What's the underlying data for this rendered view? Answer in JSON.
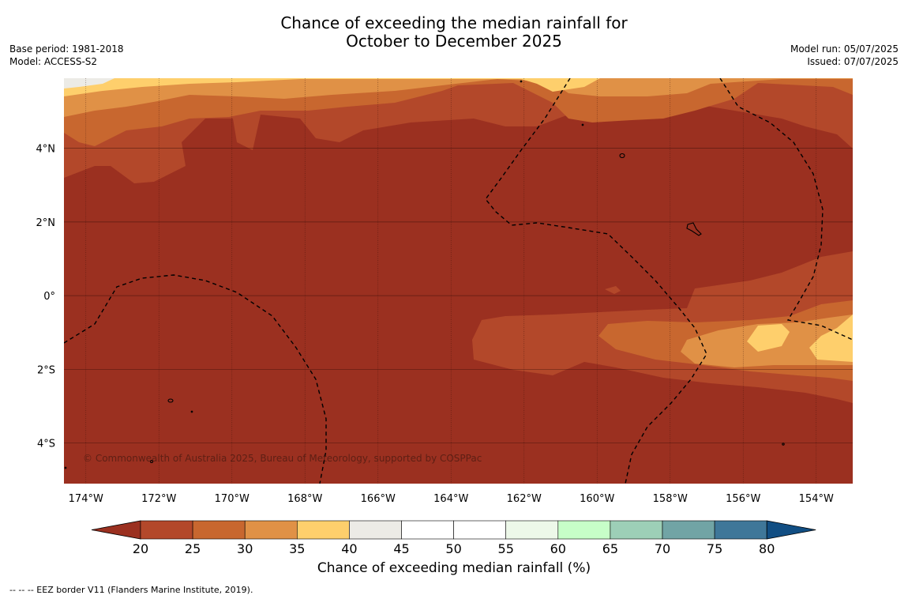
{
  "title": {
    "line1": "Chance of exceeding the median rainfall for",
    "line2": "October to December 2025"
  },
  "meta_left": {
    "base_period": "Base period: 1981-2018",
    "model": "Model: ACCESS-S2"
  },
  "meta_right": {
    "model_run": "Model run: 05/07/2025",
    "issued": "Issued: 07/07/2025"
  },
  "map": {
    "copyright": "© Commonwealth of Australia 2025, Bureau of Meteorology, supported by COSPPac",
    "lon_labels": [
      "174°W",
      "172°W",
      "170°W",
      "168°W",
      "166°W",
      "164°W",
      "162°W",
      "160°W",
      "158°W",
      "156°W",
      "154°W"
    ],
    "lat_labels": [
      "4°N",
      "2°N",
      "0°",
      "2°S",
      "4°S"
    ],
    "extent": {
      "lon": [
        -174.6,
        -153.0
      ],
      "lat": [
        -5.1,
        5.9
      ]
    }
  },
  "colorbar": {
    "title": "Chance of exceeding median rainfall (%)",
    "ticks": [
      "20",
      "25",
      "30",
      "35",
      "40",
      "45",
      "50",
      "55",
      "60",
      "65",
      "70",
      "75",
      "80"
    ],
    "colors": [
      "#9b3020",
      "#b3482a",
      "#c8672f",
      "#e09146",
      "#fecf6c",
      "#ecebe6",
      "#ffffff",
      "#ffffff",
      "#edf8e9",
      "#c7fec8",
      "#9dcfb7",
      "#71a4a5",
      "#3f7799",
      "#114e83"
    ]
  },
  "footnote": "--  --  -- EEZ border V11 (Flanders Marine Institute, 2019)."
}
